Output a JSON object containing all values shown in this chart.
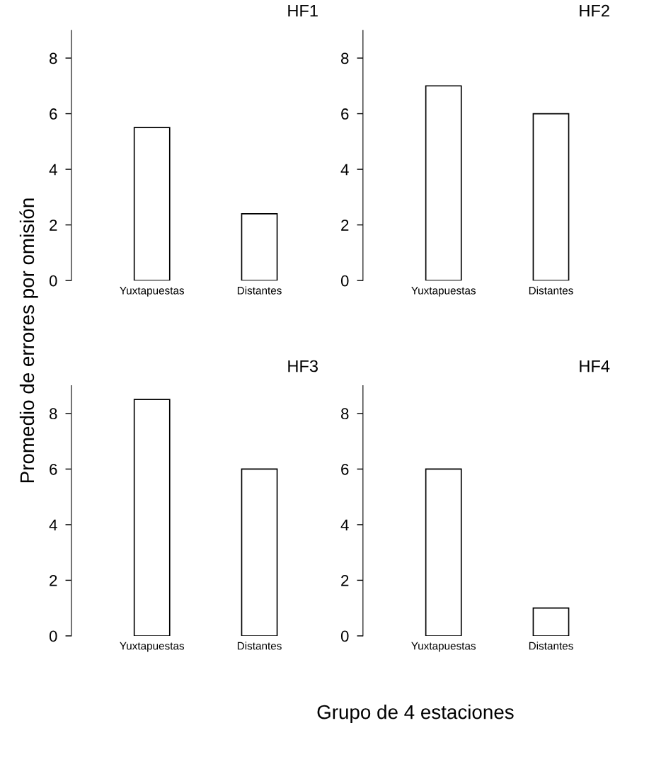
{
  "chart_data": [
    {
      "type": "bar",
      "title": "HF1",
      "ylabel": "Promedio de errores por omisión",
      "xlabel": "Grupo de 4 estaciones",
      "categories": [
        "Yuxtapuestas",
        "Distantes"
      ],
      "values": [
        5.5,
        2.4
      ],
      "color": "#ffffff",
      "ylim": [
        0,
        9
      ],
      "yticks": [
        0,
        2,
        4,
        6,
        8
      ],
      "grid": false,
      "legend": false
    },
    {
      "type": "bar",
      "title": "HF2",
      "categories": [
        "Yuxtapuestas",
        "Distantes"
      ],
      "values": [
        7,
        6
      ],
      "color": "#ffffff",
      "ylim": [
        0,
        9
      ],
      "yticks": [
        0,
        2,
        4,
        6,
        8
      ],
      "grid": false,
      "legend": false
    },
    {
      "type": "bar",
      "title": "HF3",
      "categories": [
        "Yuxtapuestas",
        "Distantes"
      ],
      "values": [
        8.5,
        6
      ],
      "color": "#ffffff",
      "ylim": [
        0,
        9
      ],
      "yticks": [
        0,
        2,
        4,
        6,
        8
      ],
      "grid": false,
      "legend": false
    },
    {
      "type": "bar",
      "title": "HF4",
      "categories": [
        "Yuxtapuestas",
        "Distantes"
      ],
      "values": [
        6,
        1
      ],
      "color": "#ffffff",
      "ylim": [
        0,
        9
      ],
      "yticks": [
        0,
        2,
        4,
        6,
        8
      ],
      "grid": false,
      "legend": false
    }
  ]
}
